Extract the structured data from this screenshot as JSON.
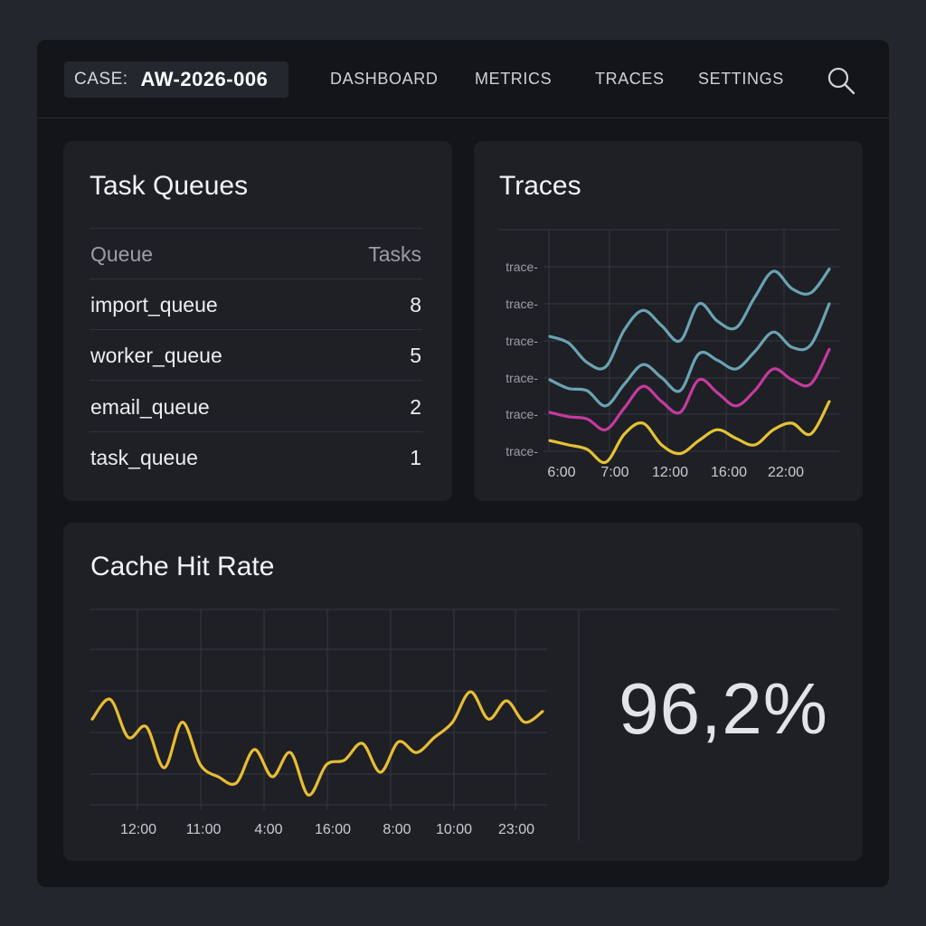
{
  "header": {
    "case_label": "CASE:",
    "case_value": "AW-2026-006",
    "nav": [
      "DASHBOARD",
      "METRICS",
      "TRACES",
      "SETTINGS"
    ]
  },
  "task_queues": {
    "title": "Task Queues",
    "columns": [
      "Queue",
      "Tasks"
    ],
    "rows": [
      {
        "queue": "import_queue",
        "tasks": "8"
      },
      {
        "queue": "worker_queue",
        "tasks": "5"
      },
      {
        "queue": "email_queue",
        "tasks": "2"
      },
      {
        "queue": "task_queue",
        "tasks": "1"
      }
    ]
  },
  "traces": {
    "title": "Traces",
    "chart_data": {
      "type": "line",
      "x_ticks": [
        "6:00",
        "7:00",
        "12:00",
        "16:00",
        "22:00"
      ],
      "y_ticks": [
        "trace-",
        "trace-",
        "trace-",
        "trace-",
        "trace-",
        "trace-"
      ],
      "ylim": [
        0,
        100
      ],
      "grid": true,
      "series": [
        {
          "color": "#6aa3b4",
          "values": [
            60,
            57,
            48,
            46,
            63,
            72,
            65,
            58,
            75,
            67,
            64,
            78,
            90,
            82,
            80,
            91
          ]
        },
        {
          "color": "#6aa3b4",
          "values": [
            40,
            36,
            35,
            28,
            38,
            47,
            41,
            35,
            52,
            49,
            45,
            53,
            62,
            55,
            56,
            75
          ]
        },
        {
          "color": "#c53aa0",
          "values": [
            25,
            23,
            22,
            17,
            27,
            37,
            30,
            25,
            40,
            34,
            28,
            35,
            45,
            40,
            38,
            54
          ]
        },
        {
          "color": "#e6c233",
          "values": [
            12,
            10,
            8,
            2,
            15,
            20,
            10,
            6,
            12,
            17,
            13,
            10,
            17,
            20,
            15,
            30
          ]
        }
      ]
    }
  },
  "cache": {
    "title": "Cache Hit Rate",
    "value": "96,2%",
    "chart_data": {
      "type": "line",
      "x_ticks": [
        "12:00",
        "11:00",
        "4:00",
        "16:00",
        "8:00",
        "10:00",
        "23:00"
      ],
      "ylim": [
        0,
        100
      ],
      "grid": true,
      "series": [
        {
          "color": "#e8bd34",
          "values": [
            60,
            73,
            48,
            55,
            28,
            58,
            30,
            22,
            18,
            40,
            22,
            38,
            10,
            30,
            33,
            44,
            25,
            45,
            38,
            48,
            58,
            78,
            60,
            72,
            58,
            65
          ]
        }
      ]
    }
  },
  "colors": {
    "background": "#23262d",
    "panel": "#141518",
    "card": "#1e2025",
    "grid": "#34373e"
  }
}
